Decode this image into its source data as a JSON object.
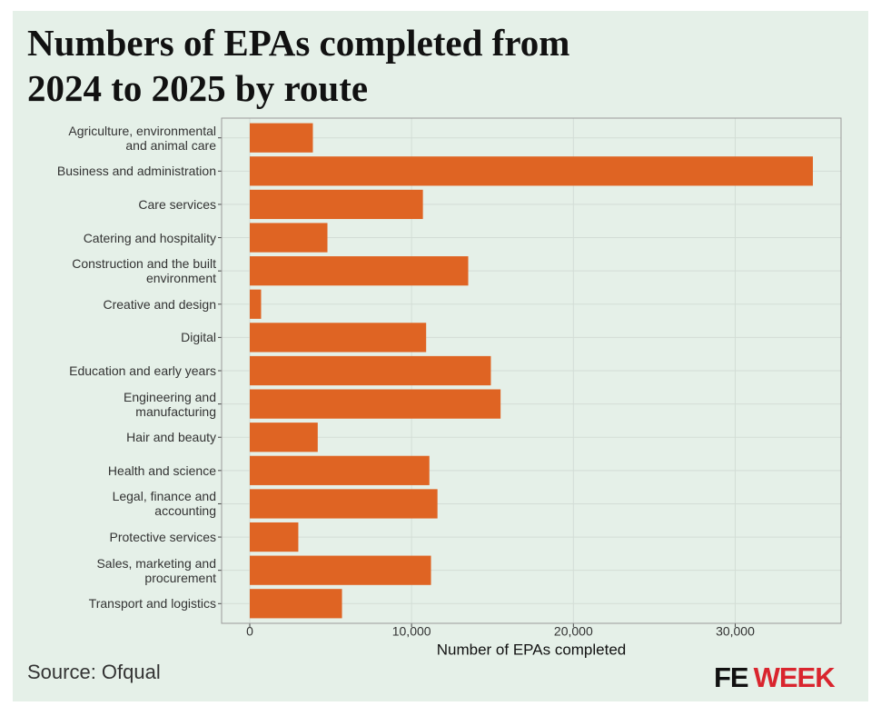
{
  "chart_data": {
    "type": "bar",
    "orientation": "horizontal",
    "title": "Numbers of EPAs completed from\n2024 to 2025 by route",
    "categories": [
      "Agriculture, environmental\nand animal care",
      "Business and administration",
      "Care services",
      "Catering and hospitality",
      "Construction and the built\nenvironment",
      "Creative and design",
      "Digital",
      "Education and early years",
      "Engineering and\nmanufacturing",
      "Hair and beauty",
      "Health and science",
      "Legal, finance and\naccounting",
      "Protective services",
      "Sales, marketing and\nprocurement",
      "Transport and logistics"
    ],
    "values": [
      3900,
      34800,
      10700,
      4800,
      13500,
      700,
      10900,
      14900,
      15500,
      4200,
      11100,
      11600,
      3000,
      11200,
      5700
    ],
    "color": "#df6423",
    "xlabel": "Number of EPAs completed",
    "xlim": [
      -1740,
      36540
    ],
    "xticks": [
      0,
      {
        "value": 10000,
        "label": "10,000"
      },
      {
        "value": 20000,
        "label": "20,000"
      },
      {
        "value": 30000,
        "label": "30,000"
      }
    ],
    "grid": true,
    "source": "Source: Ofqual",
    "logo": {
      "fe": "FE",
      "week": "WEEK"
    }
  }
}
